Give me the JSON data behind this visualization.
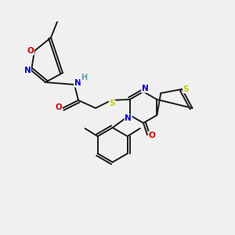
{
  "bg_color": "#f0f0f0",
  "bond_color": "#1a1a1a",
  "bond_width": 1.4,
  "atom_colors": {
    "N": "#0000cc",
    "O": "#cc0000",
    "S": "#cccc00",
    "H": "#6699aa",
    "C": "#1a1a1a"
  },
  "figsize": [
    3.0,
    3.0
  ],
  "dpi": 100
}
